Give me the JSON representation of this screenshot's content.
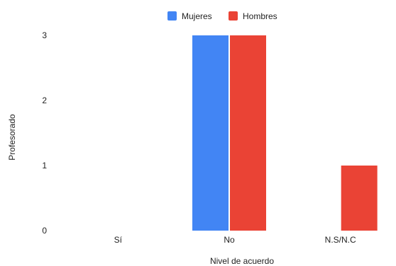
{
  "chart_data": {
    "type": "bar",
    "categories": [
      "Sí",
      "No",
      "N.S/N.C"
    ],
    "series": [
      {
        "name": "Mujeres",
        "values": [
          0,
          3,
          0
        ],
        "color": "#4285f4"
      },
      {
        "name": "Hombres",
        "values": [
          0,
          3,
          1
        ],
        "color": "#ea4335"
      }
    ],
    "xlabel": "Nivel de acuerdo",
    "ylabel": "Profesorado",
    "ylim": [
      0,
      3
    ],
    "yticks": [
      0,
      1,
      2,
      3
    ],
    "grid": false,
    "legend_position": "top-center"
  }
}
